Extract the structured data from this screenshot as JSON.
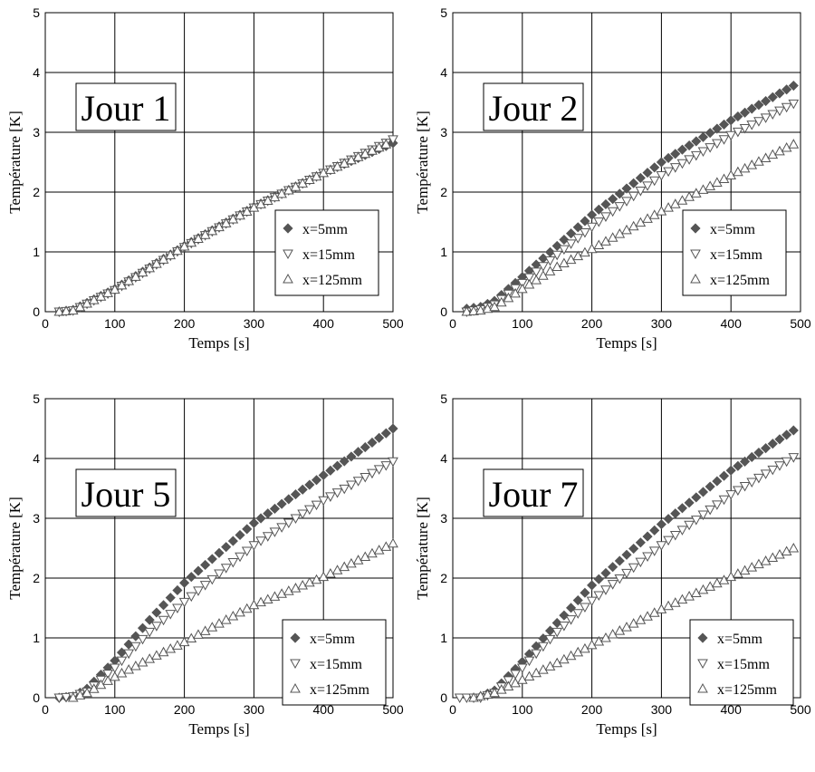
{
  "legend_entries": [
    "x=5mm",
    "x=15mm",
    "x=125mm"
  ],
  "chart_data": [
    {
      "type": "scatter",
      "panel_label": "Jour 1",
      "xlabel": "Temps [s]",
      "ylabel": "Température [K]",
      "xlim": [
        0,
        500
      ],
      "ylim": [
        0,
        5
      ],
      "xticks": [
        0,
        100,
        200,
        300,
        400,
        500
      ],
      "yticks": [
        0,
        1,
        2,
        3,
        4,
        5
      ],
      "grid": true,
      "legend": "right",
      "series": [
        {
          "name": "x=5mm",
          "marker": "diamond-filled",
          "color": "#555555",
          "x_start": 20,
          "x_step": 10,
          "x_end": 500,
          "knots_x": [
            20,
            40,
            100,
            200,
            300,
            400,
            500
          ],
          "knots_y": [
            0,
            0.03,
            0.38,
            1.1,
            1.75,
            2.32,
            2.82
          ]
        },
        {
          "name": "x=15mm",
          "marker": "triangle-down-open",
          "color": "#555555",
          "x_start": 20,
          "x_step": 10,
          "x_end": 500,
          "knots_x": [
            20,
            40,
            100,
            200,
            300,
            400,
            500
          ],
          "knots_y": [
            0,
            0.02,
            0.36,
            1.08,
            1.74,
            2.32,
            2.88
          ]
        },
        {
          "name": "x=125mm",
          "marker": "triangle-up-open",
          "color": "#555555",
          "x_start": 20,
          "x_step": 10,
          "x_end": 490,
          "knots_x": [
            20,
            40,
            100,
            200,
            300,
            400,
            490
          ],
          "knots_y": [
            0,
            0.02,
            0.37,
            1.09,
            1.74,
            2.32,
            2.8
          ]
        }
      ]
    },
    {
      "type": "scatter",
      "panel_label": "Jour 2",
      "xlabel": "Temps [s]",
      "ylabel": "Température [K]",
      "xlim": [
        0,
        500
      ],
      "ylim": [
        0,
        5
      ],
      "xticks": [
        0,
        100,
        200,
        300,
        400,
        500
      ],
      "yticks": [
        0,
        1,
        2,
        3,
        4,
        5
      ],
      "grid": true,
      "legend": "right",
      "series": [
        {
          "name": "x=5mm",
          "marker": "diamond-filled",
          "color": "#555555",
          "x_start": 20,
          "x_step": 10,
          "x_end": 490,
          "knots_x": [
            20,
            40,
            60,
            100,
            150,
            200,
            300,
            400,
            490
          ],
          "knots_y": [
            0.05,
            0.08,
            0.18,
            0.58,
            1.1,
            1.62,
            2.5,
            3.2,
            3.78
          ]
        },
        {
          "name": "x=15mm",
          "marker": "triangle-down-open",
          "color": "#555555",
          "x_start": 20,
          "x_step": 10,
          "x_end": 490,
          "knots_x": [
            20,
            40,
            60,
            100,
            150,
            200,
            300,
            400,
            490
          ],
          "knots_y": [
            0,
            0.04,
            0.12,
            0.48,
            0.95,
            1.42,
            2.28,
            2.95,
            3.48
          ]
        },
        {
          "name": "x=125mm",
          "marker": "triangle-up-open",
          "color": "#555555",
          "x_start": 20,
          "x_step": 10,
          "x_end": 490,
          "knots_x": [
            20,
            40,
            60,
            100,
            150,
            200,
            300,
            400,
            490
          ],
          "knots_y": [
            0,
            0.02,
            0.08,
            0.38,
            0.75,
            1.05,
            1.68,
            2.28,
            2.8
          ]
        }
      ]
    },
    {
      "type": "scatter",
      "panel_label": "Jour 5",
      "xlabel": "Temps [s]",
      "ylabel": "Température [K]",
      "xlim": [
        0,
        500
      ],
      "ylim": [
        0,
        5
      ],
      "xticks": [
        0,
        100,
        200,
        300,
        400,
        500
      ],
      "yticks": [
        0,
        1,
        2,
        3,
        4,
        5
      ],
      "grid": true,
      "legend": "bottom-right",
      "series": [
        {
          "name": "x=5mm",
          "marker": "diamond-filled",
          "color": "#555555",
          "x_start": 20,
          "x_step": 10,
          "x_end": 500,
          "knots_x": [
            20,
            40,
            60,
            100,
            150,
            200,
            300,
            400,
            500
          ],
          "knots_y": [
            0,
            0.02,
            0.15,
            0.62,
            1.3,
            1.92,
            2.92,
            3.72,
            4.5
          ]
        },
        {
          "name": "x=15mm",
          "marker": "triangle-down-open",
          "color": "#555555",
          "x_start": 20,
          "x_step": 10,
          "x_end": 500,
          "knots_x": [
            20,
            40,
            60,
            100,
            150,
            200,
            300,
            400,
            500
          ],
          "knots_y": [
            0,
            0.02,
            0.1,
            0.5,
            1.1,
            1.6,
            2.55,
            3.3,
            3.95
          ]
        },
        {
          "name": "x=125mm",
          "marker": "triangle-up-open",
          "color": "#555555",
          "x_start": 40,
          "x_step": 10,
          "x_end": 500,
          "knots_x": [
            40,
            60,
            100,
            150,
            200,
            300,
            400,
            500
          ],
          "knots_y": [
            0,
            0.08,
            0.35,
            0.65,
            0.93,
            1.55,
            2.02,
            2.58
          ]
        }
      ]
    },
    {
      "type": "scatter",
      "panel_label": "Jour 7",
      "xlabel": "Temps [s]",
      "ylabel": "Température [K]",
      "xlim": [
        0,
        500
      ],
      "ylim": [
        0,
        5
      ],
      "xticks": [
        0,
        100,
        200,
        300,
        400,
        500
      ],
      "yticks": [
        0,
        1,
        2,
        3,
        4,
        5
      ],
      "grid": true,
      "legend": "bottom-right",
      "series": [
        {
          "name": "x=5mm",
          "marker": "diamond-filled",
          "color": "#555555",
          "x_start": 40,
          "x_step": 10,
          "x_end": 490,
          "knots_x": [
            40,
            60,
            100,
            150,
            200,
            300,
            400,
            490
          ],
          "knots_y": [
            0.02,
            0.12,
            0.6,
            1.25,
            1.88,
            2.9,
            3.8,
            4.47
          ]
        },
        {
          "name": "x=15mm",
          "marker": "triangle-down-open",
          "color": "#555555",
          "x_start": 10,
          "x_step": 10,
          "x_end": 490,
          "knots_x": [
            10,
            40,
            60,
            100,
            150,
            200,
            300,
            400,
            490
          ],
          "knots_y": [
            0,
            0,
            0.08,
            0.5,
            1.1,
            1.62,
            2.55,
            3.4,
            4.02
          ]
        },
        {
          "name": "x=125mm",
          "marker": "triangle-up-open",
          "color": "#555555",
          "x_start": 30,
          "x_step": 10,
          "x_end": 490,
          "knots_x": [
            30,
            60,
            100,
            150,
            200,
            300,
            400,
            490
          ],
          "knots_y": [
            0,
            0.08,
            0.3,
            0.58,
            0.88,
            1.48,
            2.02,
            2.5
          ]
        }
      ]
    }
  ]
}
